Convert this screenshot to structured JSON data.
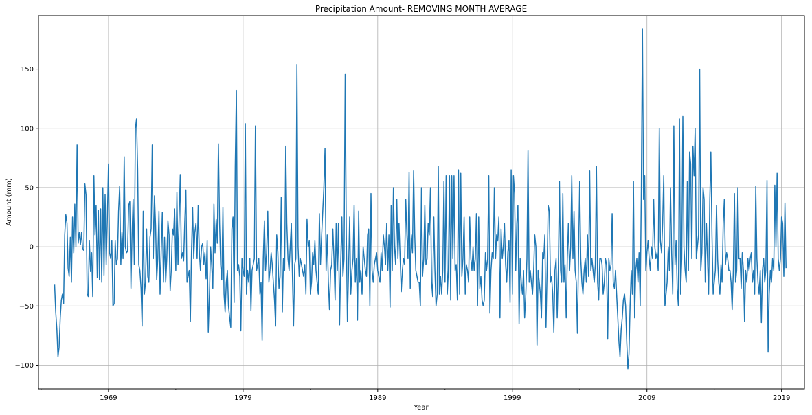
{
  "chart_data": {
    "type": "line",
    "title": "Precipitation Amount- REMOVING MONTH AVERAGE",
    "xlabel": "Year",
    "ylabel": "Amount (mm)",
    "xlim": [
      1963.8,
      2020.7
    ],
    "ylim": [
      -120,
      195
    ],
    "x_ticks": [
      1969,
      1979,
      1989,
      1999,
      2009,
      2019
    ],
    "x_minor_ticks": [
      1964,
      1974,
      1984,
      1994,
      2004,
      2014
    ],
    "y_ticks": [
      -100,
      -50,
      0,
      50,
      100,
      150
    ],
    "grid": true,
    "legend": "none",
    "colors": {
      "series": "#1f77b4",
      "grid": "#b0b0b0",
      "axes": "#000000"
    },
    "series": [
      {
        "x_start": 1965.0,
        "x_step": 0.0833333,
        "values": [
          -32,
          -55,
          -70,
          -93,
          -85,
          -60,
          -45,
          -40,
          -48,
          10,
          27,
          20,
          -18,
          -25,
          8,
          -30,
          25,
          -5,
          36,
          0,
          86,
          3,
          12,
          2,
          12,
          -2,
          -3,
          53,
          44,
          -40,
          -42,
          5,
          -21,
          -5,
          -42,
          60,
          10,
          35,
          -26,
          31,
          -28,
          32,
          -30,
          50,
          -24,
          44,
          -15,
          25,
          70,
          -5,
          -10,
          5,
          -50,
          -48,
          5,
          -15,
          -10,
          30,
          51,
          -15,
          12,
          -10,
          76,
          0,
          -5,
          -4,
          35,
          38,
          -35,
          10,
          40,
          -15,
          100,
          108,
          65,
          -15,
          -20,
          -35,
          -67,
          30,
          -40,
          -30,
          15,
          -25,
          -30,
          8,
          15,
          86,
          -10,
          43,
          18,
          -28,
          -10,
          30,
          -40,
          -5,
          29,
          -30,
          8,
          -30,
          -10,
          22,
          10,
          -37,
          -20,
          15,
          10,
          32,
          -20,
          46,
          -15,
          25,
          61,
          -10,
          -5,
          -12,
          20,
          48,
          -30,
          -25,
          -20,
          -63,
          -5,
          33,
          -10,
          12,
          20,
          -10,
          35,
          -5,
          -20,
          0,
          3,
          -15,
          -5,
          -27,
          5,
          -72,
          -40,
          0,
          -15,
          -35,
          36,
          -5,
          23,
          3,
          87,
          20,
          -15,
          -28,
          33,
          -40,
          -55,
          -30,
          -20,
          -50,
          -60,
          -68,
          15,
          25,
          -47,
          68,
          132,
          -20,
          -15,
          -25,
          -71,
          -10,
          -20,
          -25,
          104,
          -40,
          -20,
          -30,
          -10,
          -54,
          -20,
          -15,
          -10,
          102,
          -20,
          -15,
          -10,
          -40,
          -30,
          -79,
          -10,
          22,
          -20,
          -5,
          30,
          -30,
          -20,
          -5,
          -15,
          -30,
          -45,
          -67,
          10,
          -5,
          -35,
          -25,
          42,
          -55,
          -10,
          -20,
          85,
          20,
          -10,
          -20,
          0,
          20,
          -25,
          -67,
          -15,
          -10,
          154,
          0,
          -25,
          -10,
          -15,
          -20,
          -25,
          -15,
          -40,
          23,
          0,
          5,
          -40,
          -30,
          -5,
          -15,
          5,
          -20,
          -30,
          -40,
          28,
          -15,
          10,
          30,
          50,
          83,
          -20,
          10,
          -30,
          -53,
          -20,
          -15,
          15,
          -10,
          -45,
          20,
          -20,
          20,
          -66,
          -15,
          25,
          -25,
          -10,
          146,
          10,
          -63,
          -20,
          25,
          -40,
          -20,
          -10,
          35,
          -30,
          -10,
          -62,
          30,
          -30,
          -20,
          -40,
          0,
          -10,
          -20,
          -25,
          10,
          15,
          -50,
          45,
          -20,
          -30,
          -15,
          -10,
          -5,
          -20,
          -25,
          -30,
          -5,
          -20,
          10,
          0,
          -15,
          20,
          -20,
          10,
          -51,
          35,
          -20,
          50,
          0,
          -15,
          40,
          -10,
          20,
          -10,
          -38,
          -20,
          -10,
          -15,
          40,
          10,
          -10,
          63,
          -35,
          10,
          -5,
          64,
          10,
          -20,
          -25,
          -30,
          -30,
          -50,
          50,
          -25,
          -10,
          35,
          -15,
          -10,
          20,
          10,
          50,
          -30,
          -42,
          25,
          -20,
          -50,
          -40,
          68,
          -40,
          -25,
          -40,
          -20,
          55,
          -30,
          60,
          -40,
          -20,
          60,
          -45,
          60,
          -10,
          60,
          -20,
          -15,
          -45,
          65,
          -40,
          62,
          -25,
          -10,
          25,
          -40,
          -15,
          -20,
          -30,
          25,
          -10,
          -20,
          0,
          -20,
          -10,
          28,
          -50,
          25,
          -35,
          -25,
          -45,
          -50,
          -45,
          -5,
          -20,
          -10,
          60,
          -56,
          -20,
          -5,
          -10,
          50,
          -10,
          10,
          5,
          25,
          -60,
          15,
          -10,
          0,
          20,
          -15,
          -30,
          -5,
          5,
          -47,
          65,
          -40,
          60,
          45,
          -20,
          20,
          35,
          -65,
          -10,
          -30,
          -40,
          -20,
          -60,
          -40,
          -10,
          81,
          -30,
          -20,
          -30,
          -40,
          -20,
          10,
          0,
          -83,
          -20,
          -30,
          -40,
          -60,
          -5,
          -10,
          10,
          -68,
          -20,
          35,
          30,
          -30,
          -25,
          -40,
          -72,
          -20,
          -10,
          -60,
          -20,
          55,
          -20,
          -30,
          45,
          -30,
          -15,
          -60,
          -10,
          20,
          -20,
          0,
          60,
          -10,
          30,
          -20,
          -30,
          -73,
          -10,
          55,
          -10,
          -30,
          -40,
          -20,
          -10,
          -30,
          10,
          -25,
          64,
          -20,
          -10,
          -20,
          -30,
          -15,
          68,
          -30,
          -45,
          -10,
          -10,
          -15,
          -40,
          -30,
          -10,
          -15,
          -78,
          -10,
          -20,
          -15,
          28,
          -30,
          -35,
          -20,
          -40,
          -60,
          -80,
          -93,
          -70,
          -60,
          -45,
          -40,
          -50,
          -80,
          -103,
          -90,
          -50,
          -20,
          -40,
          55,
          -60,
          -20,
          -10,
          -30,
          -5,
          -50,
          50,
          184,
          40,
          60,
          -20,
          -5,
          5,
          -10,
          -20,
          0,
          -10,
          40,
          0,
          -10,
          -5,
          -20,
          100,
          5,
          -5,
          20,
          60,
          -50,
          -40,
          -30,
          0,
          -20,
          50,
          -5,
          -40,
          102,
          -15,
          5,
          -35,
          -50,
          108,
          -40,
          -10,
          110,
          0,
          -20,
          -30,
          55,
          -20,
          80,
          70,
          -10,
          85,
          60,
          100,
          -10,
          0,
          10,
          150,
          -20,
          -5,
          50,
          40,
          -30,
          20,
          -10,
          -40,
          40,
          80,
          10,
          -40,
          -30,
          -20,
          35,
          -10,
          -30,
          -40,
          -15,
          -30,
          20,
          40,
          -15,
          -5,
          -10,
          -20,
          -20,
          -30,
          -53,
          -20,
          45,
          -30,
          -20,
          50,
          -10,
          -10,
          -35,
          -5,
          -20,
          -63,
          -20,
          -30,
          -10,
          -20,
          -10,
          -5,
          -30,
          -20,
          -40,
          51,
          -10,
          -30,
          -40,
          -20,
          -64,
          -20,
          -10,
          -30,
          -20,
          56,
          -89,
          -40,
          -20,
          -30,
          -10,
          -20,
          52,
          0,
          62,
          -10,
          -20,
          -10,
          25,
          20,
          -25,
          37,
          -18
        ]
      }
    ]
  }
}
